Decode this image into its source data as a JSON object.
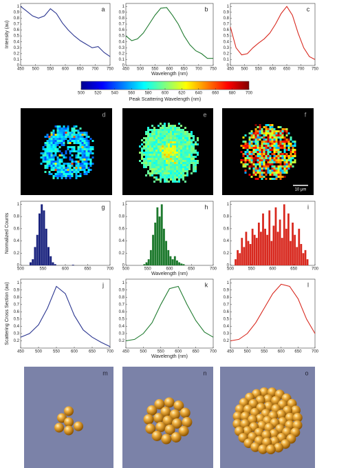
{
  "chart_data": [
    {
      "type": "line",
      "panel_label": "a",
      "ylabel": "Intensity (au)",
      "color": "#2a3590",
      "x": [
        450,
        470,
        490,
        510,
        530,
        550,
        570,
        590,
        610,
        630,
        650,
        670,
        690,
        710,
        730,
        750
      ],
      "values": [
        1.0,
        0.92,
        0.84,
        0.8,
        0.84,
        0.96,
        0.88,
        0.72,
        0.6,
        0.5,
        0.42,
        0.36,
        0.3,
        0.32,
        0.22,
        0.15
      ],
      "xlim": [
        450,
        750
      ],
      "xticks": [
        450,
        500,
        550,
        600,
        650,
        700,
        750
      ],
      "ylim": [
        0,
        1.05
      ],
      "yticks": [
        0,
        0.1,
        0.2,
        0.3,
        0.4,
        0.5,
        0.6,
        0.7,
        0.8,
        0.9,
        1
      ]
    },
    {
      "type": "line",
      "panel_label": "b",
      "xlabel": "Wavelength (nm)",
      "color": "#1e7a2e",
      "x": [
        450,
        470,
        490,
        510,
        530,
        550,
        570,
        590,
        610,
        630,
        650,
        670,
        690,
        710,
        730,
        750
      ],
      "values": [
        0.5,
        0.42,
        0.45,
        0.55,
        0.7,
        0.85,
        0.97,
        0.98,
        0.85,
        0.7,
        0.5,
        0.35,
        0.25,
        0.2,
        0.12,
        0.12
      ],
      "xlim": [
        450,
        750
      ],
      "xticks": [
        450,
        500,
        550,
        600,
        650,
        700,
        750
      ],
      "ylim": [
        0,
        1.05
      ],
      "yticks": [
        0,
        0.1,
        0.2,
        0.3,
        0.4,
        0.5,
        0.6,
        0.7,
        0.8,
        0.9,
        1
      ]
    },
    {
      "type": "line",
      "panel_label": "c",
      "color": "#d8281e",
      "x": [
        450,
        470,
        490,
        510,
        530,
        550,
        570,
        590,
        610,
        630,
        650,
        670,
        690,
        710,
        730,
        750
      ],
      "values": [
        0.65,
        0.3,
        0.18,
        0.2,
        0.3,
        0.38,
        0.45,
        0.55,
        0.7,
        0.88,
        1.0,
        0.85,
        0.55,
        0.3,
        0.15,
        0.1
      ],
      "xlim": [
        450,
        750
      ],
      "xticks": [
        450,
        500,
        550,
        600,
        650,
        700,
        750
      ],
      "ylim": [
        0,
        1.05
      ],
      "yticks": [
        0,
        0.1,
        0.2,
        0.3,
        0.4,
        0.5,
        0.6,
        0.7,
        0.8,
        0.9,
        1
      ]
    },
    {
      "type": "colorbar",
      "label": "Peak Scattering Wavelength (nm)",
      "xlim": [
        500,
        700
      ],
      "xticks": [
        500,
        520,
        540,
        560,
        580,
        600,
        620,
        640,
        660,
        680,
        700
      ]
    },
    {
      "type": "image",
      "panel_label": "d"
    },
    {
      "type": "image",
      "panel_label": "e"
    },
    {
      "type": "image",
      "panel_label": "f",
      "scale_bar": "10 μm"
    },
    {
      "type": "histogram",
      "panel_label": "g",
      "ylabel": "Normalized Counts",
      "color": "#1a237e",
      "bins": [
        500,
        505,
        510,
        515,
        520,
        525,
        530,
        535,
        540,
        545,
        550,
        555,
        560,
        565,
        570,
        575,
        580,
        585,
        590,
        595,
        600,
        605,
        610,
        615,
        620,
        625,
        630,
        635,
        640,
        645,
        650,
        655,
        660,
        665,
        670,
        675,
        680,
        685,
        690,
        695,
        700
      ],
      "values": [
        0,
        0,
        0,
        0,
        0.05,
        0.1,
        0.3,
        0.5,
        0.85,
        1,
        0.9,
        0.6,
        0.3,
        0.15,
        0.05,
        0.02,
        0,
        0,
        0,
        0,
        0,
        0,
        0,
        0.01,
        0,
        0,
        0,
        0,
        0,
        0,
        0,
        0,
        0,
        0,
        0,
        0,
        0,
        0,
        0,
        0
      ],
      "xlim": [
        500,
        700
      ],
      "xticks": [
        500,
        550,
        600,
        650,
        700
      ],
      "ylim": [
        0,
        1.05
      ],
      "yticks": [
        0,
        0.2,
        0.4,
        0.6,
        0.8,
        1
      ]
    },
    {
      "type": "histogram",
      "panel_label": "h",
      "xlabel": "Wavelength (nm)",
      "color": "#1e7a2e",
      "bins": [
        500,
        505,
        510,
        515,
        520,
        525,
        530,
        535,
        540,
        545,
        550,
        555,
        560,
        565,
        570,
        575,
        580,
        585,
        590,
        595,
        600,
        605,
        610,
        615,
        620,
        625,
        630,
        635,
        640,
        645,
        650,
        655,
        660,
        665,
        670,
        675,
        680,
        685,
        690,
        695,
        700
      ],
      "values": [
        0,
        0,
        0,
        0,
        0,
        0,
        0,
        0,
        0.02,
        0.05,
        0.1,
        0.25,
        0.5,
        0.7,
        0.95,
        0.8,
        1,
        0.6,
        0.4,
        0.25,
        0.15,
        0.1,
        0.15,
        0.08,
        0.05,
        0.03,
        0.02,
        0,
        0,
        0,
        0,
        0,
        0,
        0,
        0,
        0,
        0,
        0,
        0,
        0
      ],
      "xlim": [
        500,
        700
      ],
      "xticks": [
        500,
        550,
        600,
        650,
        700
      ],
      "ylim": [
        0,
        1.05
      ],
      "yticks": [
        0,
        0.2,
        0.4,
        0.6,
        0.8,
        1
      ]
    },
    {
      "type": "histogram",
      "panel_label": "i",
      "color": "#d8281e",
      "bins": [
        500,
        505,
        510,
        515,
        520,
        525,
        530,
        535,
        540,
        545,
        550,
        555,
        560,
        565,
        570,
        575,
        580,
        585,
        590,
        595,
        600,
        605,
        610,
        615,
        620,
        625,
        630,
        635,
        640,
        645,
        650,
        655,
        660,
        665,
        670,
        675,
        680,
        685,
        690,
        695,
        700
      ],
      "values": [
        0,
        0,
        0.1,
        0.25,
        0.2,
        0.45,
        0.3,
        0.55,
        0.4,
        0.35,
        0.6,
        0.5,
        0.45,
        0.7,
        0.55,
        0.85,
        0.6,
        0.5,
        0.9,
        0.4,
        0.65,
        0.95,
        0.55,
        0.75,
        0.45,
        1,
        0.6,
        0.85,
        0.4,
        0.7,
        0.5,
        0.3,
        0.6,
        0.35,
        0.2,
        0.25,
        0.1,
        0,
        0,
        0
      ],
      "xlim": [
        500,
        700
      ],
      "xticks": [
        500,
        550,
        600,
        650,
        700
      ],
      "ylim": [
        0,
        1.05
      ],
      "yticks": [
        0,
        0.2,
        0.4,
        0.6,
        0.8,
        1
      ]
    },
    {
      "type": "line",
      "panel_label": "j",
      "ylabel": "Scattering Cross Section (au)",
      "color": "#2a3590",
      "x": [
        450,
        475,
        500,
        525,
        550,
        575,
        600,
        625,
        650,
        675,
        700
      ],
      "values": [
        0.25,
        0.3,
        0.42,
        0.65,
        0.95,
        0.85,
        0.55,
        0.35,
        0.25,
        0.18,
        0.12
      ],
      "xlim": [
        450,
        700
      ],
      "xticks": [
        450,
        500,
        550,
        600,
        650,
        700
      ],
      "ylim": [
        0.1,
        1.05
      ],
      "yticks": [
        0.2,
        0.3,
        0.4,
        0.5,
        0.6,
        0.7,
        0.8,
        0.9,
        1
      ]
    },
    {
      "type": "line",
      "panel_label": "k",
      "xlabel": "Wavelength (nm)",
      "color": "#1e7a2e",
      "x": [
        450,
        475,
        500,
        525,
        550,
        575,
        600,
        625,
        650,
        675,
        700
      ],
      "values": [
        0.2,
        0.22,
        0.3,
        0.45,
        0.7,
        0.92,
        0.95,
        0.7,
        0.48,
        0.32,
        0.25
      ],
      "xlim": [
        450,
        700
      ],
      "xticks": [
        450,
        500,
        550,
        600,
        650,
        700
      ],
      "ylim": [
        0.1,
        1.05
      ],
      "yticks": [
        0.2,
        0.3,
        0.4,
        0.5,
        0.6,
        0.7,
        0.8,
        0.9,
        1
      ]
    },
    {
      "type": "line",
      "panel_label": "l",
      "color": "#d8281e",
      "x": [
        450,
        475,
        500,
        525,
        550,
        575,
        600,
        625,
        650,
        675,
        700
      ],
      "values": [
        0.2,
        0.22,
        0.3,
        0.45,
        0.65,
        0.85,
        0.98,
        0.95,
        0.78,
        0.5,
        0.3
      ],
      "xlim": [
        450,
        700
      ],
      "xticks": [
        450,
        500,
        550,
        600,
        650,
        700
      ],
      "ylim": [
        0.1,
        1.05
      ],
      "yticks": [
        0.2,
        0.3,
        0.4,
        0.5,
        0.6,
        0.7,
        0.8,
        0.9,
        1
      ]
    },
    {
      "type": "render",
      "panel_label": "m"
    },
    {
      "type": "render",
      "panel_label": "n"
    },
    {
      "type": "render",
      "panel_label": "o"
    }
  ]
}
